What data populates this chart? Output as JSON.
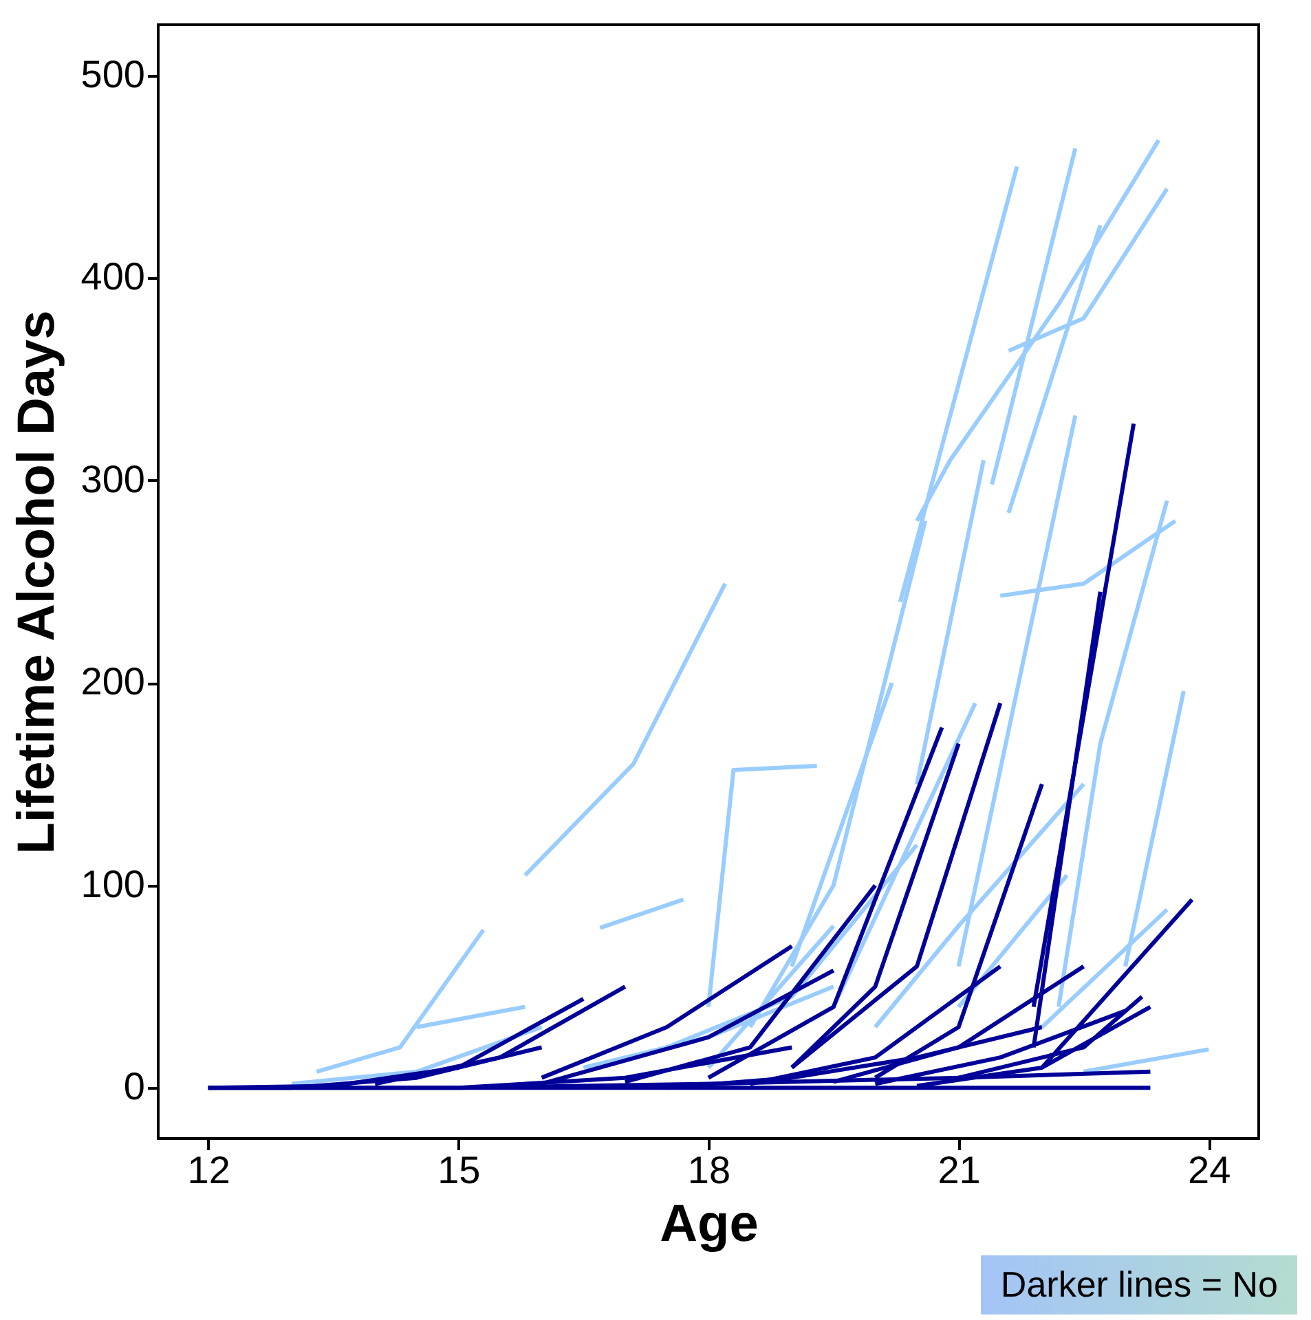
{
  "chart_data": {
    "type": "line",
    "xlabel": "Age",
    "ylabel": "Lifetime Alcohol Days",
    "xlim": [
      11.4,
      24.6
    ],
    "xticks": [
      12,
      15,
      18,
      21,
      24
    ],
    "ylim": [
      -25,
      525
    ],
    "yticks": [
      0,
      100,
      200,
      300,
      400,
      500
    ],
    "grid": false,
    "legend": false,
    "marker": "none",
    "line_style": "solid",
    "annotations": [
      "Darker lines = No"
    ],
    "series": [
      {
        "color": "#99ccff",
        "x": [
          15.8,
          17.1,
          18.2
        ],
        "values": [
          105,
          160,
          249
        ]
      },
      {
        "color": "#99ccff",
        "x": [
          13.3,
          14.3,
          15.3
        ],
        "values": [
          8,
          20,
          78
        ]
      },
      {
        "color": "#99ccff",
        "x": [
          20.3,
          21.7
        ],
        "values": [
          240,
          455
        ]
      },
      {
        "color": "#99ccff",
        "x": [
          21.4,
          22.4
        ],
        "values": [
          298,
          464
        ]
      },
      {
        "color": "#99ccff",
        "x": [
          20.5,
          20.9,
          22.2,
          23.4
        ],
        "values": [
          280,
          310,
          387,
          468
        ]
      },
      {
        "color": "#99ccff",
        "x": [
          21.6,
          22.5,
          23.5
        ],
        "values": [
          364,
          380,
          444
        ]
      },
      {
        "color": "#99ccff",
        "x": [
          21.6,
          22.7
        ],
        "values": [
          284,
          426
        ]
      },
      {
        "color": "#99ccff",
        "x": [
          21.5,
          22.5,
          23.6
        ],
        "values": [
          243,
          249,
          280
        ]
      },
      {
        "color": "#99ccff",
        "x": [
          22.2,
          22.7,
          23.5
        ],
        "values": [
          40,
          170,
          290
        ]
      },
      {
        "color": "#99ccff",
        "x": [
          21.0,
          22.4
        ],
        "values": [
          60,
          332
        ]
      },
      {
        "color": "#99ccff",
        "x": [
          23.0,
          23.7
        ],
        "values": [
          60,
          196
        ]
      },
      {
        "color": "#99ccff",
        "x": [
          20.5,
          21.3
        ],
        "values": [
          150,
          310
        ]
      },
      {
        "color": "#99ccff",
        "x": [
          22.5,
          24.0
        ],
        "values": [
          8,
          19
        ]
      },
      {
        "color": "#99ccff",
        "x": [
          16.7,
          17.7
        ],
        "values": [
          79,
          93
        ]
      },
      {
        "color": "#99ccff",
        "x": [
          18.0,
          18.3,
          19.3
        ],
        "values": [
          40,
          157,
          159
        ]
      },
      {
        "color": "#99ccff",
        "x": [
          14.5,
          15.8
        ],
        "values": [
          30,
          40
        ]
      },
      {
        "color": "#99ccff",
        "x": [
          18.5,
          19.5,
          20.6
        ],
        "values": [
          30,
          100,
          280
        ]
      },
      {
        "color": "#99ccff",
        "x": [
          19.0,
          20.2
        ],
        "values": [
          60,
          200
        ]
      },
      {
        "color": "#99ccff",
        "x": [
          19.5,
          21.2
        ],
        "values": [
          40,
          190
        ]
      },
      {
        "color": "#99ccff",
        "x": [
          17.5,
          19.0,
          20.5
        ],
        "values": [
          20,
          45,
          120
        ]
      },
      {
        "color": "#99ccff",
        "x": [
          20.0,
          21.0,
          22.5
        ],
        "values": [
          30,
          80,
          150
        ]
      },
      {
        "color": "#99ccff",
        "x": [
          21.0,
          22.3
        ],
        "values": [
          40,
          105
        ]
      },
      {
        "color": "#99ccff",
        "x": [
          22.0,
          23.5
        ],
        "values": [
          30,
          88
        ]
      },
      {
        "color": "#99ccff",
        "x": [
          18.0,
          19.5
        ],
        "values": [
          10,
          80
        ]
      },
      {
        "color": "#99ccff",
        "x": [
          13.0,
          14.5,
          16.0
        ],
        "values": [
          2,
          8,
          30
        ]
      },
      {
        "color": "#99ccff",
        "x": [
          16.5,
          18.0,
          19.5
        ],
        "values": [
          10,
          25,
          50
        ]
      },
      {
        "color": "#000099",
        "x": [
          21.9,
          23.1
        ],
        "values": [
          40,
          328
        ]
      },
      {
        "color": "#000099",
        "x": [
          21.9,
          22.7
        ],
        "values": [
          20,
          245
        ]
      },
      {
        "color": "#000099",
        "x": [
          22.0,
          23.8
        ],
        "values": [
          10,
          93
        ]
      },
      {
        "color": "#000099",
        "x": [
          12.0,
          13.0,
          14.5,
          16.0
        ],
        "values": [
          0,
          0,
          5,
          20
        ]
      },
      {
        "color": "#000099",
        "x": [
          12.0,
          13.5,
          15.0,
          16.5
        ],
        "values": [
          0,
          1,
          10,
          44
        ]
      },
      {
        "color": "#000099",
        "x": [
          14.0,
          15.5,
          17.0
        ],
        "values": [
          2,
          15,
          50
        ]
      },
      {
        "color": "#000099",
        "x": [
          16.0,
          17.5,
          19.0
        ],
        "values": [
          5,
          30,
          70
        ]
      },
      {
        "color": "#000099",
        "x": [
          17.0,
          18.5,
          20.0
        ],
        "values": [
          3,
          20,
          100
        ]
      },
      {
        "color": "#000099",
        "x": [
          18.0,
          19.5,
          20.8
        ],
        "values": [
          5,
          40,
          178
        ]
      },
      {
        "color": "#000099",
        "x": [
          19.0,
          20.5,
          21.5
        ],
        "values": [
          10,
          60,
          190
        ]
      },
      {
        "color": "#000099",
        "x": [
          20.0,
          21.0,
          22.0
        ],
        "values": [
          5,
          30,
          150
        ]
      },
      {
        "color": "#000099",
        "x": [
          18.5,
          20.0,
          21.5
        ],
        "values": [
          2,
          15,
          60
        ]
      },
      {
        "color": "#000099",
        "x": [
          19.5,
          21.0,
          22.5
        ],
        "values": [
          3,
          20,
          60
        ]
      },
      {
        "color": "#000099",
        "x": [
          20.5,
          22.0,
          23.3
        ],
        "values": [
          1,
          10,
          40
        ]
      },
      {
        "color": "#000099",
        "x": [
          17.5,
          19.0,
          20.5,
          22.0
        ],
        "values": [
          0,
          5,
          15,
          30
        ]
      },
      {
        "color": "#000099",
        "x": [
          15.0,
          17.0,
          19.0
        ],
        "values": [
          0,
          5,
          20
        ]
      },
      {
        "color": "#000099",
        "x": [
          12.0,
          15.0,
          18.0,
          21.0,
          23.3
        ],
        "values": [
          0,
          0,
          2,
          5,
          8
        ]
      },
      {
        "color": "#000099",
        "x": [
          12.0,
          16.0,
          20.0,
          23.3
        ],
        "values": [
          0,
          0,
          0,
          0
        ]
      },
      {
        "color": "#000099",
        "x": [
          20.0,
          21.5,
          23.0
        ],
        "values": [
          2,
          15,
          38
        ]
      },
      {
        "color": "#000099",
        "x": [
          19.0,
          20.0,
          21.0
        ],
        "values": [
          10,
          50,
          170
        ]
      },
      {
        "color": "#000099",
        "x": [
          16.0,
          18.0,
          19.5
        ],
        "values": [
          2,
          25,
          58
        ]
      },
      {
        "color": "#000099",
        "x": [
          21.0,
          22.5,
          23.2
        ],
        "values": [
          5,
          20,
          45
        ]
      }
    ]
  }
}
